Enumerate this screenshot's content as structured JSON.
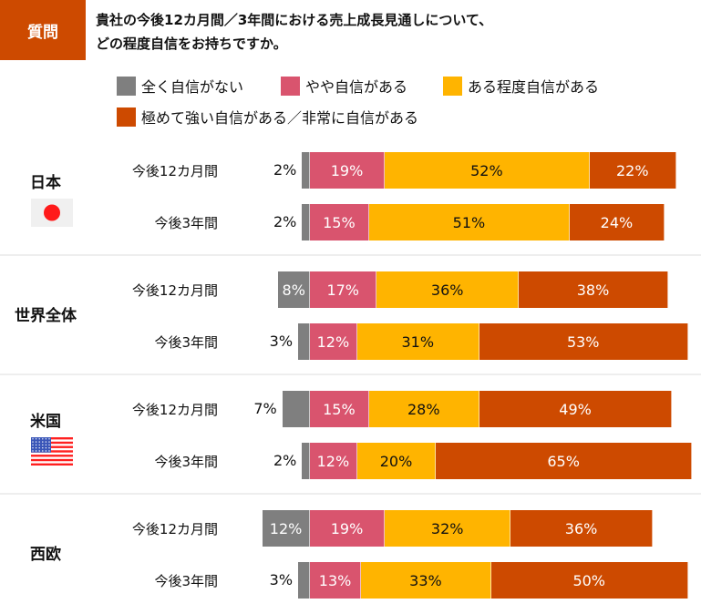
{
  "question": {
    "badge": "質問",
    "line1": "貴社の今後12カ月間／3年間における売上成長見通しについて、",
    "line2": "どの程度自信をお持ちですか。"
  },
  "colors": {
    "badge": "#cd4a00",
    "none": "#7f7f7f",
    "somewhat": "#d9546e",
    "moderate": "#ffb400",
    "very": "#cd4a00"
  },
  "chart_data": {
    "type": "bar",
    "orientation": "horizontal-stacked-diverging",
    "title": "貴社の今後12カ月間／3年間における売上成長見通しについて、どの程度自信をお持ちですか。",
    "legend_position": "top",
    "series_names": [
      "全く自信がない",
      "やや自信がある",
      "ある程度自信がある",
      "極めて強い自信がある／非常に自信がある"
    ],
    "groups": [
      {
        "name": "日本",
        "flag": "japan-flag",
        "rows": [
          {
            "label": "今後12カ月間",
            "values": [
              2,
              19,
              52,
              22
            ]
          },
          {
            "label": "今後3年間",
            "values": [
              2,
              15,
              51,
              24
            ]
          }
        ]
      },
      {
        "name": "世界全体",
        "flag": "",
        "rows": [
          {
            "label": "今後12カ月間",
            "values": [
              8,
              17,
              36,
              38
            ]
          },
          {
            "label": "今後3年間",
            "values": [
              3,
              12,
              31,
              53
            ]
          }
        ]
      },
      {
        "name": "米国",
        "flag": "us-flag",
        "rows": [
          {
            "label": "今後12カ月間",
            "values": [
              7,
              15,
              28,
              49
            ]
          },
          {
            "label": "今後3年間",
            "values": [
              2,
              12,
              20,
              65
            ]
          }
        ]
      },
      {
        "name": "西欧",
        "flag": "",
        "rows": [
          {
            "label": "今後12カ月間",
            "values": [
              12,
              19,
              32,
              36
            ]
          },
          {
            "label": "今後3年間",
            "values": [
              3,
              13,
              33,
              50
            ]
          }
        ]
      }
    ],
    "value_suffix": "%",
    "xlim": [
      0,
      100
    ]
  }
}
